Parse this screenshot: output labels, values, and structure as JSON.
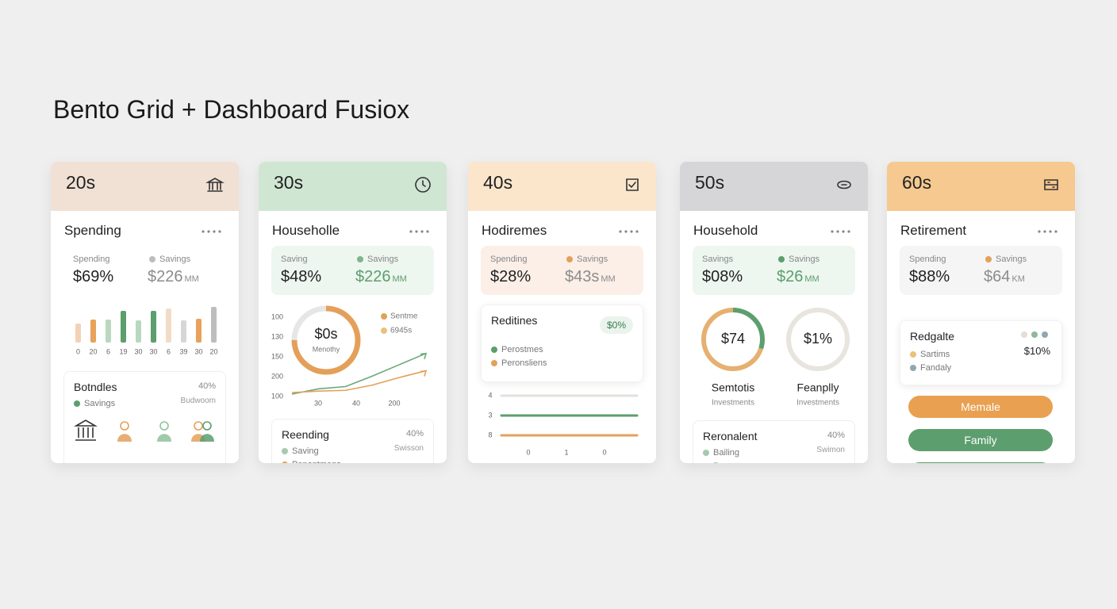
{
  "title": "Bento Grid + Dashboard Fusiox",
  "cards": [
    {
      "kind": "bars",
      "age": "20s",
      "header_color": "#f1e0d4",
      "section": "Spending",
      "stat": {
        "bg": "#ffffff",
        "label1": "Spending",
        "value1": "$69%",
        "label2": "Savings",
        "dot_color": "#bdbdbd",
        "value2": "$226",
        "value2_unit": "MM",
        "value2_color": "#8c8c8c"
      },
      "bars": {
        "ylim": [
          0,
          50
        ],
        "values": [
          24,
          29,
          29,
          40,
          28,
          40,
          43,
          28,
          30,
          45
        ],
        "colors": [
          "#f2d2b8",
          "#e8a25a",
          "#b9d8bf",
          "#5d9e6e",
          "#b9d8bf",
          "#5d9e6e",
          "#f2dcc8",
          "#d6d6d6",
          "#e8a25a",
          "#bdbdbd"
        ],
        "labels": [
          "0",
          "20",
          "6",
          "19",
          "30",
          "30",
          "6",
          "39",
          "30",
          "20"
        ]
      },
      "panel": {
        "title": "Botndles",
        "percent": "40%",
        "legend": [
          {
            "name": "Savings",
            "color": "#5d9e6e"
          }
        ],
        "note": "Budwoom"
      }
    },
    {
      "kind": "donut_line",
      "age": "30s",
      "header_color": "#cfe6d3",
      "section": "Householle",
      "stat": {
        "bg": "#edf6ef",
        "label1": "Saving",
        "value1": "$48%",
        "label2": "Savings",
        "dot_color": "#7fb58d",
        "value2": "$226",
        "value2_unit": "MM",
        "value2_color": "#5d9e6e"
      },
      "donut": {
        "value": "$0s",
        "label": "Menothy",
        "segments": [
          {
            "value": 75,
            "color": "#e4a05a"
          },
          {
            "value": 25,
            "color": "#e6e6e6"
          }
        ]
      },
      "axis_labels": [
        "100",
        "130",
        "150",
        "200",
        "100"
      ],
      "legend": [
        {
          "name": "Sentme",
          "color": "#e4a05a"
        },
        {
          "name": "6945s",
          "color": "#eac17c"
        }
      ],
      "lines": {
        "ylim": [
          0,
          60
        ],
        "series": [
          {
            "color": "#6aa87a",
            "values": [
              0,
              7,
              10,
              24,
              39,
              54
            ]
          },
          {
            "color": "#e4a05a",
            "values": [
              2,
              4,
              5,
              12,
              22,
              31
            ]
          }
        ]
      },
      "x_labels": [
        "30",
        "40",
        "200"
      ],
      "panel": {
        "title": "Reending",
        "percent": "40%",
        "legend": [
          {
            "name": "Saving",
            "color": "#a8c9ae"
          },
          {
            "name": "Penontmens",
            "color": "#e4a05a"
          }
        ],
        "note": "Swisson"
      }
    },
    {
      "kind": "progress",
      "age": "40s",
      "header_color": "#fbe6cc",
      "section": "Hodiremes",
      "stat": {
        "bg": "#fbefe8",
        "label1": "Spending",
        "value1": "$28%",
        "label2": "Savings",
        "dot_color": "#e4a05a",
        "value2": "$43s",
        "value2_unit": "MM",
        "value2_color": "#8c8c8c"
      },
      "panel": {
        "title": "Reditines",
        "pill": "$0%",
        "legend": [
          {
            "name": "Perostmes",
            "color": "#5d9e6e"
          },
          {
            "name": "Peronsliens",
            "color": "#e4a05a"
          }
        ]
      },
      "progress": {
        "xlim": [
          0,
          100
        ],
        "rows": [
          {
            "label": "4",
            "value": 100,
            "color": "#e3e0dc"
          },
          {
            "label": "3",
            "value": 100,
            "color": "#5d9e6e"
          },
          {
            "label": "8",
            "value": 100,
            "color": "#e4a05a"
          }
        ]
      },
      "x_labels": [
        "0",
        "1",
        "0"
      ]
    },
    {
      "kind": "donuts",
      "age": "50s",
      "header_color": "#d6d6d8",
      "section": "Household",
      "stat": {
        "bg": "#edf6ef",
        "label1": "Savings",
        "value1": "$08%",
        "label2": "Savings",
        "dot_color": "#5d9e6e",
        "value2": "$26",
        "value2_unit": "MM",
        "value2_color": "#5d9e6e"
      },
      "donuts": [
        {
          "value": "$74",
          "name": "Semtotis",
          "sub": "Investments",
          "segments": [
            {
              "value": 30,
              "color": "#5d9e6e"
            },
            {
              "value": 70,
              "color": "#e6b070"
            }
          ]
        },
        {
          "value": "$1%",
          "name": "Feanplly",
          "sub": "Investments",
          "segments": [
            {
              "value": 100,
              "color": "#e8e4de"
            }
          ]
        }
      ],
      "panel": {
        "title": "Reronalent",
        "percent": "40%",
        "legend": [
          {
            "name": "Bailing",
            "color": "#a8c9ae"
          },
          {
            "name": "Pornormons",
            "color": "#e4a05a"
          }
        ],
        "note": "Swimon"
      }
    },
    {
      "kind": "buttons",
      "age": "60s",
      "header_color": "#f5c98f",
      "section": "Retirement",
      "stat": {
        "bg": "#f5f5f5",
        "label1": "Spending",
        "value1": "$88%",
        "label2": "Savings",
        "dot_color": "#e4a05a",
        "value2": "$64",
        "value2_unit": "KM",
        "value2_color": "#8c8c8c"
      },
      "panel": {
        "title": "Redgalte",
        "value": "$10%",
        "dot_colors": [
          "#e6ddd4",
          "#8fb89a",
          "#8fa8b0"
        ],
        "legend": [
          {
            "name": "Sartims",
            "color": "#eac17c"
          },
          {
            "name": "Fandaly",
            "color": "#8fa8b0"
          }
        ]
      },
      "buttons": [
        {
          "label": "Memale",
          "color": "#e9a050"
        },
        {
          "label": "Family",
          "color": "#5d9e6e"
        }
      ]
    }
  ]
}
